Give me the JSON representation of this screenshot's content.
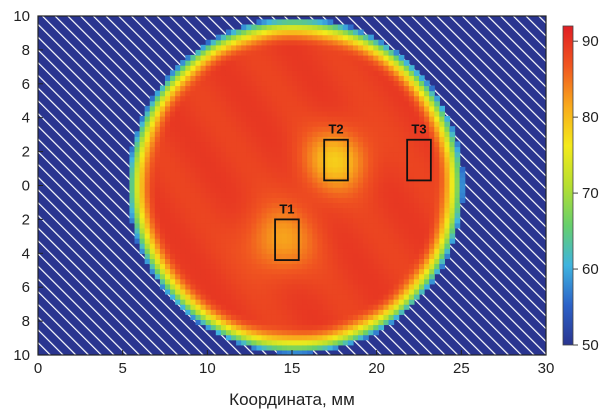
{
  "chart_data": {
    "type": "heatmap",
    "xlabel": "Координата, мм",
    "ylabel": "",
    "xlim": [
      0,
      30
    ],
    "ylim_labels_top_to_bottom": [
      "10",
      "8",
      "6",
      "4",
      "2",
      "0",
      "2",
      "4",
      "6",
      "8",
      "10"
    ],
    "x_ticks": [
      "0",
      "5",
      "10",
      "15",
      "20",
      "25",
      "30"
    ],
    "background_pattern": "diagonal-hatch",
    "region": {
      "shape": "circle",
      "center_x": 15.2,
      "center_y": 0,
      "radius": 9.9
    },
    "base_value": 89,
    "hot_spots": [
      {
        "x": 17.6,
        "y": 1.5,
        "value": 79,
        "spread": 1.8
      },
      {
        "x": 14.3,
        "y": -3.2,
        "value": 82,
        "spread": 2.0
      }
    ],
    "colorbar": {
      "min": 50,
      "max": 92,
      "ticks": [
        "90",
        "80",
        "70",
        "60",
        "50"
      ],
      "colors": [
        "#2a3590",
        "#2c62c8",
        "#3fb4df",
        "#66cf6c",
        "#b6df30",
        "#f4ea1a",
        "#f8a91c",
        "#f05620",
        "#e01e24"
      ]
    },
    "zones": [
      {
        "label": "T1",
        "x": 14.0,
        "y": -4.4,
        "w": 1.4,
        "h": 2.4
      },
      {
        "label": "T2",
        "x": 16.9,
        "y": 0.3,
        "w": 1.4,
        "h": 2.4
      },
      {
        "label": "T3",
        "x": 21.8,
        "y": 0.3,
        "w": 1.4,
        "h": 2.4
      }
    ]
  }
}
